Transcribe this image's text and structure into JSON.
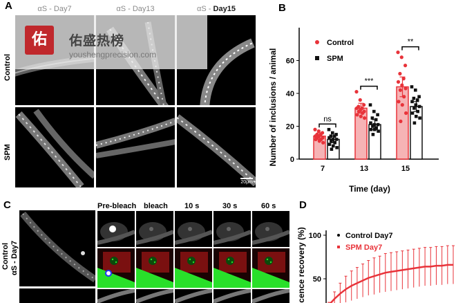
{
  "panel_labels": {
    "a": "A",
    "b": "B",
    "c": "C",
    "d": "D"
  },
  "panelA": {
    "columns": [
      {
        "prefix": "αS - ",
        "day": "Day7",
        "bold": false
      },
      {
        "prefix": "αS - ",
        "day": "Day13",
        "bold": false
      },
      {
        "prefix": "αS - ",
        "day": "Day15",
        "bold": true
      }
    ],
    "rows": [
      "Control",
      "SPM"
    ],
    "scale_bar": "20μm"
  },
  "watermark": {
    "logo_char": "佑",
    "name": "佑盛热榜",
    "url": "youshengprecision.com"
  },
  "panelC": {
    "row_label_line1": "Control",
    "row_label_line2": "αS - Day7",
    "frames": [
      "Pre-bleach",
      "bleach",
      "10 s",
      "30 s",
      "60 s"
    ]
  },
  "colors": {
    "control": "#e8333a",
    "control_fill": "#f6b3b5",
    "spm": "#111111",
    "spm_fill": "#ffffff",
    "green": "#29e02a"
  },
  "chart_data": [
    {
      "type": "bar",
      "panel": "B",
      "title": "",
      "xlabel": "Time (day)",
      "ylabel": "Number of inclusions / animal",
      "categories": [
        "7",
        "13",
        "15"
      ],
      "ylim": [
        0,
        80
      ],
      "yticks": [
        0,
        20,
        40,
        60
      ],
      "series": [
        {
          "name": "Control",
          "values": [
            14,
            31,
            44
          ],
          "errors": [
            2,
            3,
            6
          ],
          "points": [
            [
              18,
              17,
              16,
              15,
              15,
              14,
              14,
              13,
              13,
              12,
              12,
              11,
              10
            ],
            [
              41,
              36,
              33,
              32,
              31,
              31,
              30,
              29,
              29,
              28,
              27,
              26,
              25
            ],
            [
              65,
              62,
              57,
              52,
              49,
              47,
              45,
              43,
              42,
              38,
              35,
              33,
              28,
              23
            ]
          ]
        },
        {
          "name": "SPM",
          "values": [
            12,
            21,
            32
          ],
          "errors": [
            2,
            3,
            3
          ],
          "points": [
            [
              18,
              16,
              15,
              14,
              14,
              13,
              12,
              12,
              11,
              10,
              9,
              8,
              7,
              6
            ],
            [
              33,
              29,
              27,
              25,
              24,
              22,
              21,
              21,
              20,
              19,
              18,
              18,
              17,
              15
            ],
            [
              44,
              42,
              38,
              37,
              36,
              35,
              33,
              32,
              31,
              29,
              28,
              26,
              25,
              22
            ]
          ]
        }
      ],
      "significance": [
        "ns",
        "***",
        "**"
      ],
      "legend_position": "top-right"
    },
    {
      "type": "line",
      "panel": "D",
      "title": "",
      "ylabel": "Fluorescence recovery (%)",
      "ylabel_visible": "cence recovery (%)",
      "yticks": [
        50,
        100
      ],
      "series": [
        {
          "name": "Control Day7",
          "values": []
        },
        {
          "name": "SPM Day7",
          "values": [
            20,
            27,
            33,
            38,
            42,
            45,
            48,
            51,
            53,
            55,
            57,
            58,
            59,
            60,
            61,
            62,
            63,
            64,
            64,
            65,
            65,
            66,
            66
          ],
          "errors": [
            3,
            8,
            12,
            15,
            17,
            18,
            19,
            20,
            21,
            21,
            22,
            22,
            22,
            22,
            22,
            22,
            22,
            22,
            22,
            22,
            22,
            22,
            22
          ]
        }
      ]
    }
  ]
}
